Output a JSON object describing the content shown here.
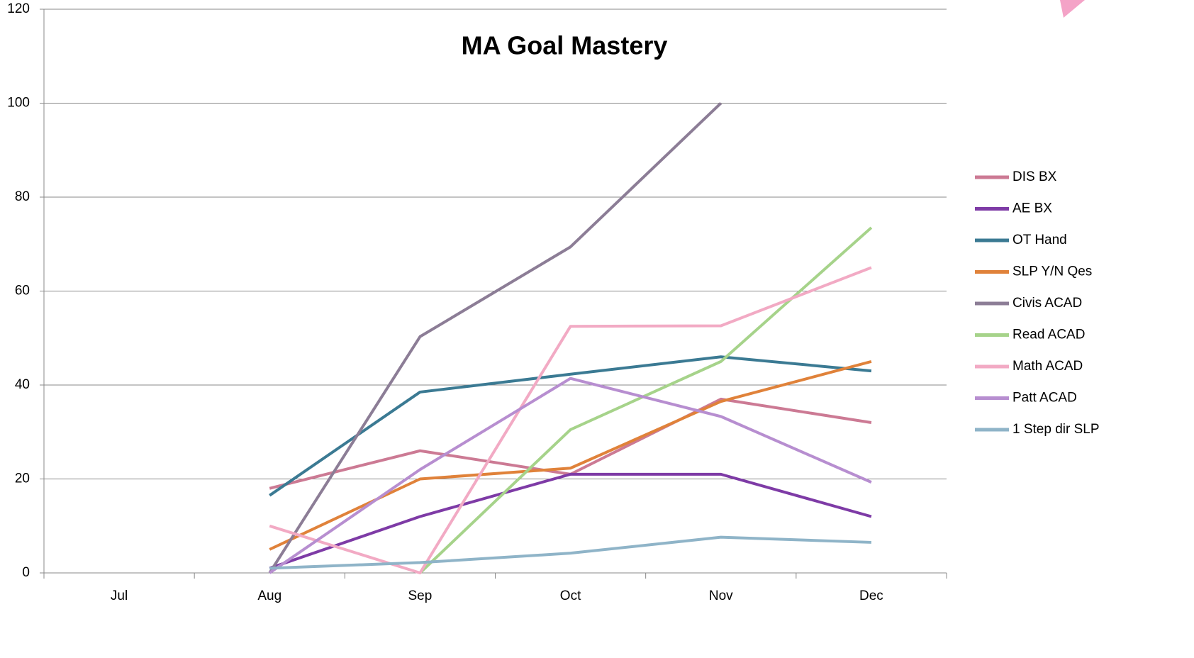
{
  "chart_data": {
    "type": "line",
    "title": "MA Goal Mastery",
    "categories": [
      "Jul",
      "Aug",
      "Sep",
      "Oct",
      "Nov",
      "Dec"
    ],
    "series": [
      {
        "name": "DIS BX",
        "color": "#cc7a94",
        "values": [
          null,
          18,
          26,
          21,
          37,
          32
        ]
      },
      {
        "name": "AE BX",
        "color": "#7e3ba6",
        "values": [
          null,
          1,
          12,
          21,
          21,
          12
        ]
      },
      {
        "name": "OT Hand",
        "color": "#3b7a93",
        "values": [
          null,
          16.5,
          38.5,
          42.3,
          46,
          43
        ]
      },
      {
        "name": "SLP Y/N Qes",
        "color": "#e0823a",
        "values": [
          null,
          5,
          20,
          22.3,
          36.5,
          45
        ]
      },
      {
        "name": "Civis ACAD",
        "color": "#8c7d96",
        "values": [
          null,
          0,
          50.3,
          69.4,
          100,
          null
        ]
      },
      {
        "name": "Read ACAD",
        "color": "#a6d38a",
        "values": [
          null,
          null,
          0,
          30.5,
          45,
          73.5
        ]
      },
      {
        "name": "Math ACAD",
        "color": "#f2aac4",
        "values": [
          null,
          10,
          0,
          52.5,
          52.6,
          65
        ]
      },
      {
        "name": "Patt ACAD",
        "color": "#b78ed0",
        "values": [
          null,
          0,
          22,
          41.4,
          33.3,
          19.3
        ]
      },
      {
        "name": "1 Step dir SLP",
        "color": "#8fb4c8",
        "values": [
          null,
          1,
          2.2,
          4.2,
          7.6,
          6.5
        ]
      }
    ],
    "ylim": [
      0,
      120
    ],
    "yticks": [
      0,
      20,
      40,
      60,
      80,
      100,
      120
    ],
    "grid": true,
    "legend": "right"
  }
}
